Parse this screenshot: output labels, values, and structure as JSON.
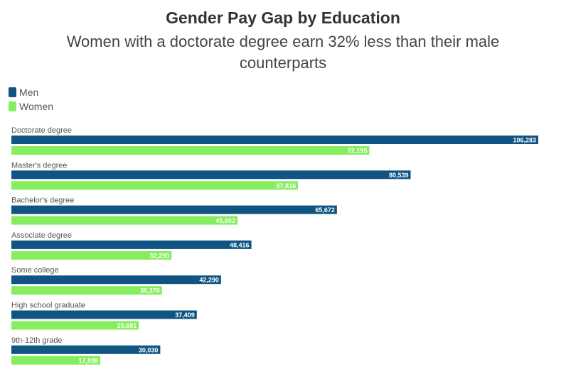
{
  "chart_data": {
    "type": "bar",
    "orientation": "horizontal",
    "title": "Gender Pay Gap by Education",
    "subtitle": "Women with a doctorate degree earn 32% less than their male counterparts",
    "categories": [
      "Doctorate degree",
      "Master's degree",
      "Bachelor's degree",
      "Associate degree",
      "Some college",
      "High school graduate",
      "9th-12th grade"
    ],
    "series": [
      {
        "name": "Men",
        "color": "#0f5482",
        "values": [
          106283,
          80539,
          65672,
          48416,
          42290,
          37409,
          30030
        ],
        "labels": [
          "106,283",
          "80,539",
          "65,672",
          "48,416",
          "42,290",
          "37,409",
          "30,030"
        ]
      },
      {
        "name": "Women",
        "color": "#86ee5e",
        "values": [
          72195,
          57816,
          45602,
          32290,
          30370,
          25691,
          17938
        ],
        "labels": [
          "72,195",
          "57,816",
          "45,602",
          "32,290",
          "30,370",
          "25,691",
          "17,938"
        ]
      }
    ],
    "legend": "top-left",
    "grid": false
  }
}
